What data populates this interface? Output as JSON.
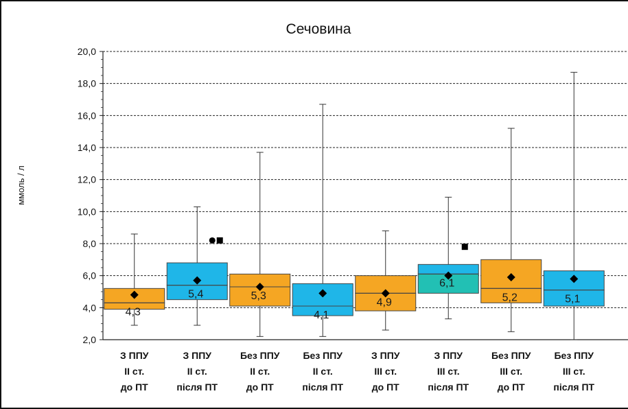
{
  "chart_data": {
    "type": "box",
    "title": "Сечовина",
    "ylabel": "ммоль / л",
    "ylim": [
      2,
      20
    ],
    "yticks": [
      "2,0",
      "4,0",
      "6,0",
      "8,0",
      "10,0",
      "12,0",
      "14,0",
      "16,0",
      "18,0",
      "20,0"
    ],
    "grid": true,
    "categories": [
      [
        "З ППУ",
        "ІІ ст.",
        "до ПТ"
      ],
      [
        "З ППУ",
        "ІІ ст.",
        "після ПТ"
      ],
      [
        "Без ППУ",
        "ІІ ст.",
        "до ПТ"
      ],
      [
        "Без ППУ",
        "ІІ ст.",
        "після ПТ"
      ],
      [
        "З ППУ",
        "ІІІ ст.",
        "до ПТ"
      ],
      [
        "З ППУ",
        "ІІІ ст.",
        "після ПТ"
      ],
      [
        "Без ППУ",
        "ІІІ ст.",
        "до ПТ"
      ],
      [
        "Без ППУ",
        "ІІІ ст.",
        "після ПТ"
      ]
    ],
    "boxes": [
      {
        "min": 2.9,
        "q1": 3.9,
        "median": 4.3,
        "q3": 5.2,
        "max": 8.6,
        "mean": 4.8,
        "median_label": "4,3",
        "color": "#f5a623",
        "outliers": []
      },
      {
        "min": 2.9,
        "q1": 4.5,
        "median": 5.4,
        "q3": 6.8,
        "max": 10.3,
        "mean": 5.7,
        "median_label": "5,4",
        "color": "#1fb6e8",
        "outliers": [
          {
            "v": 8.2,
            "m": "circle"
          },
          {
            "v": 8.2,
            "m": "square"
          }
        ]
      },
      {
        "min": 2.2,
        "q1": 4.1,
        "median": 5.3,
        "q3": 6.1,
        "max": 13.7,
        "mean": 5.3,
        "median_label": "5,3",
        "color": "#f5a623",
        "outliers": []
      },
      {
        "min": 2.2,
        "q1": 3.5,
        "median": 4.1,
        "q3": 5.5,
        "max": 16.7,
        "mean": 4.9,
        "median_label": "4,1",
        "color": "#1fb6e8",
        "outliers": []
      },
      {
        "min": 2.6,
        "q1": 3.8,
        "median": 4.9,
        "q3": 6.0,
        "max": 8.8,
        "mean": 4.9,
        "median_label": "4,9",
        "color": "#f5a623",
        "outliers": []
      },
      {
        "min": 3.3,
        "q1": 4.9,
        "median": 6.1,
        "q3": 6.7,
        "max": 10.9,
        "mean": 6.0,
        "median_label": "6,1",
        "color": "#1fb6e8",
        "lower_color": "#22c0b4",
        "outliers": [
          {
            "v": 7.8,
            "m": "square"
          }
        ]
      },
      {
        "min": 2.5,
        "q1": 4.3,
        "median": 5.2,
        "q3": 7.0,
        "max": 15.2,
        "mean": 5.9,
        "median_label": "5,2",
        "color": "#f5a623",
        "outliers": []
      },
      {
        "min": 2.0,
        "q1": 4.1,
        "median": 5.1,
        "q3": 6.3,
        "max": 18.7,
        "mean": 5.8,
        "median_label": "5,1",
        "color": "#1fb6e8",
        "outliers": []
      }
    ]
  }
}
